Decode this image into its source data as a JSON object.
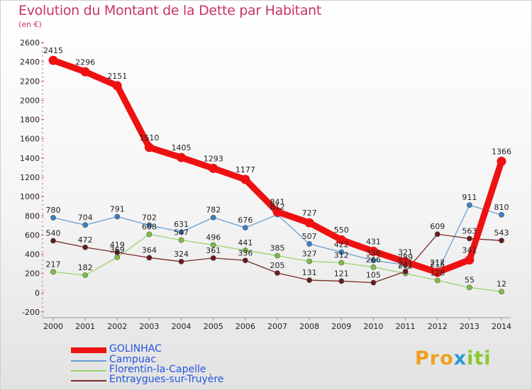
{
  "title": "Evolution du Montant de la Dette par Habitant",
  "subtitle": "(en €)",
  "logo": {
    "part1": "Pro",
    "part2": "x",
    "part3": "iti"
  },
  "chart_data": {
    "type": "line",
    "x": [
      "2000",
      "2001",
      "2002",
      "2003",
      "2004",
      "2005",
      "2006",
      "2007",
      "2008",
      "2009",
      "2010",
      "2011",
      "2012",
      "2013",
      "2014"
    ],
    "ylim": [
      -200,
      2600
    ],
    "yticks": [
      -200,
      0,
      200,
      400,
      600,
      800,
      1000,
      1200,
      1400,
      1600,
      1800,
      2000,
      2200,
      2400,
      2600
    ],
    "grid": false,
    "legend_position": "bottom-left",
    "series": [
      {
        "name": "GOLINHAC",
        "color": "#ee1111",
        "marker": "#ee1111",
        "bold": true,
        "values": [
          2415,
          2296,
          2151,
          1510,
          1405,
          1293,
          1177,
          841,
          727,
          550,
          431,
          321,
          212,
          341,
          1366
        ]
      },
      {
        "name": "Campuac",
        "color": "#6a9fd0",
        "marker": "#3a7fc8",
        "values": [
          780,
          704,
          791,
          702,
          631,
          782,
          676,
          812,
          507,
          422,
          336,
          289,
          215,
          911,
          810
        ]
      },
      {
        "name": "Florentin-la-Capelle",
        "color": "#9ad070",
        "marker": "#7cc040",
        "values": [
          217,
          182,
          369,
          608,
          547,
          496,
          441,
          385,
          327,
          312,
          266,
          201,
          128,
          55,
          12
        ]
      },
      {
        "name": "Entraygues-sur-Truyère",
        "color": "#7a2a2a",
        "marker": "#6a1a1a",
        "values": [
          540,
          472,
          419,
          364,
          324,
          361,
          336,
          205,
          131,
          121,
          105,
          221,
          609,
          563,
          543
        ]
      }
    ]
  }
}
